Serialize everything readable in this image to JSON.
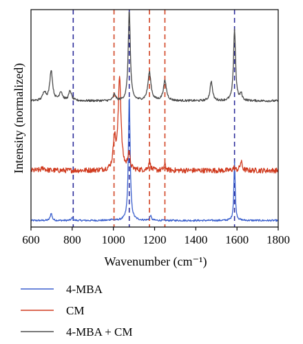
{
  "chart_data": {
    "type": "line",
    "xlabel": "Wavenumber (cm⁻¹)",
    "ylabel": "Intensity (normalized)",
    "xlim": [
      600,
      1800
    ],
    "x_ticks": [
      "600",
      "800",
      "1000",
      "1200",
      "1400",
      "1600",
      "1800"
    ],
    "grid": false,
    "y_tick_labels": false,
    "legend_position": "bottom",
    "reference_lines": [
      {
        "x": 805,
        "color": "#2b2b9a",
        "style": "dashed"
      },
      {
        "x": 1003,
        "color": "#d04020",
        "style": "dashed"
      },
      {
        "x": 1077,
        "color": "#2b2b9a",
        "style": "dashed"
      },
      {
        "x": 1175,
        "color": "#d04020",
        "style": "dashed"
      },
      {
        "x": 1250,
        "color": "#d04020",
        "style": "dashed"
      },
      {
        "x": 1588,
        "color": "#2b2b9a",
        "style": "dashed"
      }
    ],
    "series": [
      {
        "name": "4-MBA",
        "color": "#3a5fcd",
        "baseline": 0.03,
        "noise": 0.004,
        "peaks": [
          {
            "x": 698,
            "h": 0.035,
            "w": 5
          },
          {
            "x": 800,
            "h": 0.012,
            "w": 5
          },
          {
            "x": 990,
            "h": 0.006,
            "w": 5
          },
          {
            "x": 1077,
            "h": 0.58,
            "w": 5
          },
          {
            "x": 1180,
            "h": 0.022,
            "w": 5
          },
          {
            "x": 1588,
            "h": 0.27,
            "w": 4
          }
        ]
      },
      {
        "name": "CM",
        "color": "#d03a1e",
        "baseline": 0.26,
        "noise": 0.012,
        "peaks": [
          {
            "x": 660,
            "h": 0.012,
            "w": 10
          },
          {
            "x": 1005,
            "h": 0.14,
            "w": 7
          },
          {
            "x": 1030,
            "h": 0.43,
            "w": 8
          },
          {
            "x": 1075,
            "h": 0.08,
            "w": 6
          },
          {
            "x": 1175,
            "h": 0.04,
            "w": 6
          },
          {
            "x": 1250,
            "h": 0.025,
            "w": 6
          },
          {
            "x": 1585,
            "h": 0.012,
            "w": 6
          },
          {
            "x": 1620,
            "h": 0.04,
            "w": 6
          }
        ]
      },
      {
        "name": "4-MBA + CM",
        "color": "#4a4a4a",
        "baseline": 0.58,
        "noise": 0.005,
        "peaks": [
          {
            "x": 665,
            "h": 0.04,
            "w": 9
          },
          {
            "x": 698,
            "h": 0.14,
            "w": 8
          },
          {
            "x": 745,
            "h": 0.04,
            "w": 9
          },
          {
            "x": 790,
            "h": 0.045,
            "w": 8
          },
          {
            "x": 1005,
            "h": 0.03,
            "w": 7
          },
          {
            "x": 1077,
            "h": 0.42,
            "w": 6
          },
          {
            "x": 1175,
            "h": 0.13,
            "w": 9
          },
          {
            "x": 1250,
            "h": 0.09,
            "w": 9
          },
          {
            "x": 1475,
            "h": 0.09,
            "w": 7
          },
          {
            "x": 1588,
            "h": 0.33,
            "w": 6
          },
          {
            "x": 1620,
            "h": 0.03,
            "w": 6
          }
        ]
      }
    ]
  },
  "legend": {
    "items": [
      {
        "label": "4-MBA",
        "color": "#3a5fcd"
      },
      {
        "label": "CM",
        "color": "#d03a1e"
      },
      {
        "label": "4-MBA + CM",
        "color": "#4a4a4a"
      }
    ]
  }
}
